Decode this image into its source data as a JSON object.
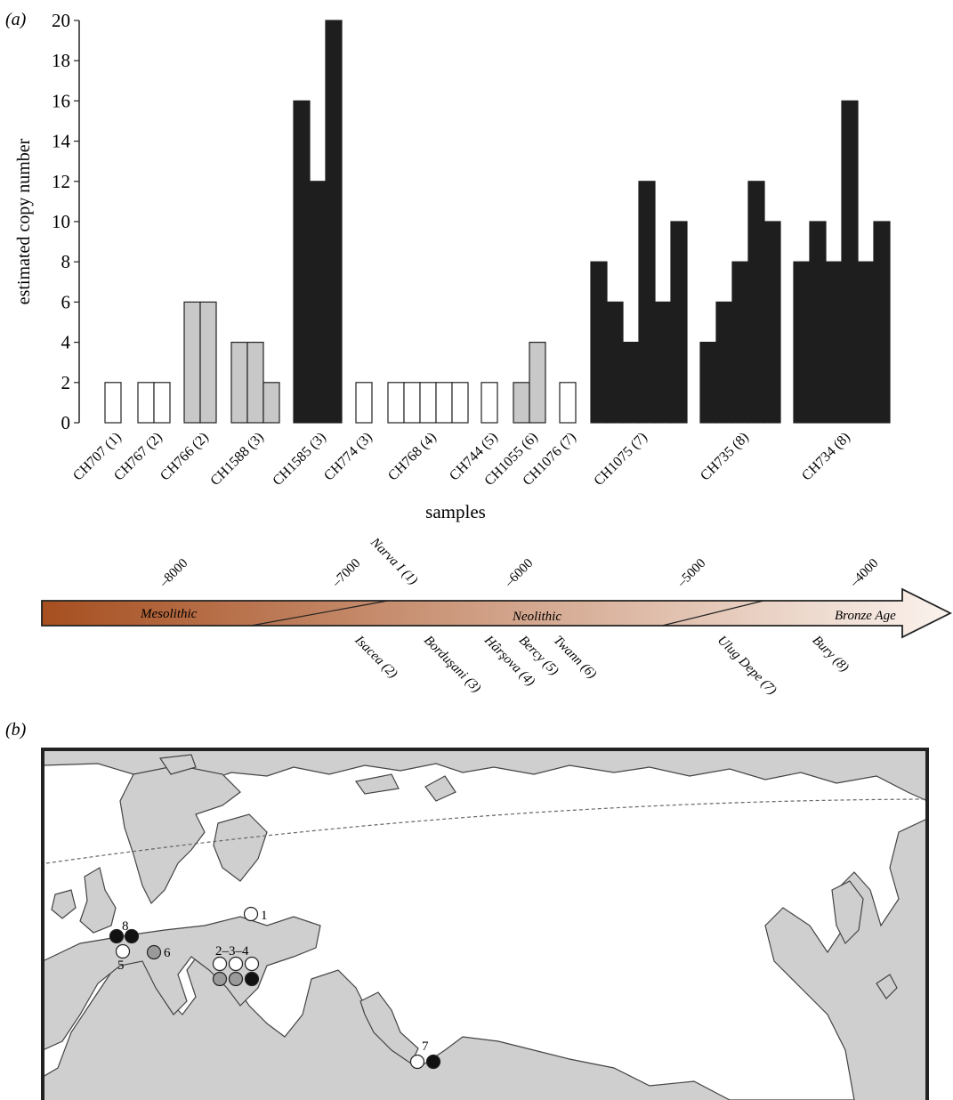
{
  "panel_a_label": "(a)",
  "panel_b_label": "(b)",
  "colors": {
    "white_bar": "#ffffff",
    "grey_bar": "#c8c8c8",
    "black_bar": "#1e1e1e",
    "land": "#cfcfcf",
    "sea": "#ffffff",
    "arrow_dark": "#a64f20",
    "arrow_light": "#fbf3ee"
  },
  "chart_data": [
    {
      "type": "bar",
      "title": "",
      "xlabel": "samples",
      "ylabel": "estimated copy number",
      "ylim": [
        0,
        20
      ],
      "yticks": [
        0,
        2,
        4,
        6,
        8,
        10,
        12,
        14,
        16,
        18,
        20
      ],
      "grid": false,
      "legend": "none",
      "samples": [
        {
          "label": "CH707 (1)",
          "group": "white",
          "values": [
            2
          ]
        },
        {
          "label": "CH767 (2)",
          "group": "white",
          "values": [
            2,
            2
          ]
        },
        {
          "label": "CH766 (2)",
          "group": "grey",
          "values": [
            6,
            6
          ]
        },
        {
          "label": "CH1588 (3)",
          "group": "grey",
          "values": [
            4,
            4,
            2
          ]
        },
        {
          "label": "CH1585 (3)",
          "group": "black",
          "values": [
            16,
            12,
            20
          ]
        },
        {
          "label": "CH774 (3)",
          "group": "white",
          "values": [
            2
          ]
        },
        {
          "label": "CH768 (4)",
          "group": "white",
          "values": [
            2,
            2,
            2,
            2,
            2
          ]
        },
        {
          "label": "CH744 (5)",
          "group": "white",
          "values": [
            2
          ]
        },
        {
          "label": "CH1055 (6)",
          "group": "grey",
          "values": [
            2,
            4
          ]
        },
        {
          "label": "CH1076 (7)",
          "group": "white",
          "values": [
            2
          ]
        },
        {
          "label": "CH1075 (7)",
          "group": "black",
          "values": [
            8,
            6,
            4,
            12,
            6,
            10
          ]
        },
        {
          "label": "CH735 (8)",
          "group": "black",
          "values": [
            4,
            6,
            8,
            12,
            10
          ]
        },
        {
          "label": "CH734 (8)",
          "group": "black",
          "values": [
            8,
            10,
            8,
            16,
            8,
            10
          ]
        }
      ]
    },
    {
      "type": "timeline",
      "ticks": [
        -8000,
        -7000,
        -6000,
        -5000,
        -4000
      ],
      "tick_labels": [
        "–8000",
        "–7000",
        "–6000",
        "–5000",
        "–4000"
      ],
      "periods": [
        "Mesolithic",
        "Neolithic",
        "Bronze Age"
      ],
      "sites": [
        {
          "label": "Narva I (1)",
          "year": -6500,
          "side": "above"
        },
        {
          "label": "Isacea (2)",
          "year": -6900,
          "side": "below"
        },
        {
          "label": "Borduşani (3)",
          "year": -6500,
          "side": "below"
        },
        {
          "label": "Hârşova (4)",
          "year": -6150,
          "side": "below"
        },
        {
          "label": "Bercy (5)",
          "year": -5950,
          "side": "below"
        },
        {
          "label": "Twann (6)",
          "year": -5750,
          "side": "below"
        },
        {
          "label": "Ulug Depe (7)",
          "year": -4800,
          "side": "below"
        },
        {
          "label": "Bury (8)",
          "year": -4250,
          "side": "below"
        }
      ]
    }
  ],
  "map": {
    "sites": [
      {
        "label": "1",
        "dots": [
          "white"
        ]
      },
      {
        "label": "8",
        "dots": [
          "black",
          "black"
        ]
      },
      {
        "label": "5",
        "dots": [
          "white"
        ]
      },
      {
        "label": "6",
        "dots": [
          "grey"
        ]
      },
      {
        "label": "2–3–4",
        "dots": [
          "white",
          "white",
          "white",
          "grey",
          "grey",
          "black"
        ]
      },
      {
        "label": "7",
        "dots": [
          "white",
          "black"
        ]
      }
    ]
  }
}
